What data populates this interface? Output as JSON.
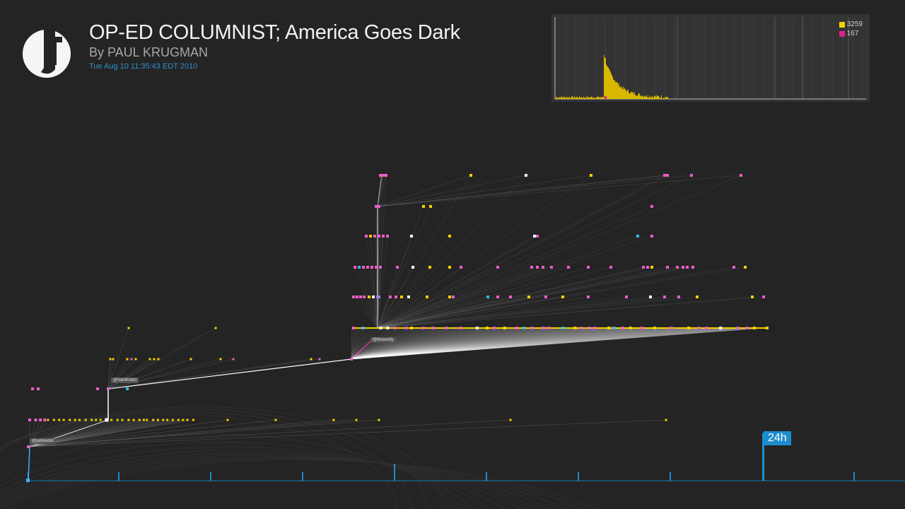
{
  "article": {
    "title": "OP-ED COLUMNIST; America Goes Dark",
    "byline": "By PAUL KRUGMAN",
    "timestamp": "Tue Aug 10 11:35:43 EDT 2010"
  },
  "histogram": {
    "legend": [
      {
        "color": "#f2d200",
        "count": "3259"
      },
      {
        "color": "#e0208f",
        "count": "167"
      }
    ]
  },
  "users": {
    "u1": "@pahkadot",
    "u2": "@VainKrebs",
    "u3": "@timoreilly"
  },
  "timeline": {
    "badge": "24h"
  },
  "colors": {
    "background": "#242424",
    "tweet": "#f2d200",
    "retweet": "#e85cc0",
    "accent": "#1c8ed0"
  }
}
